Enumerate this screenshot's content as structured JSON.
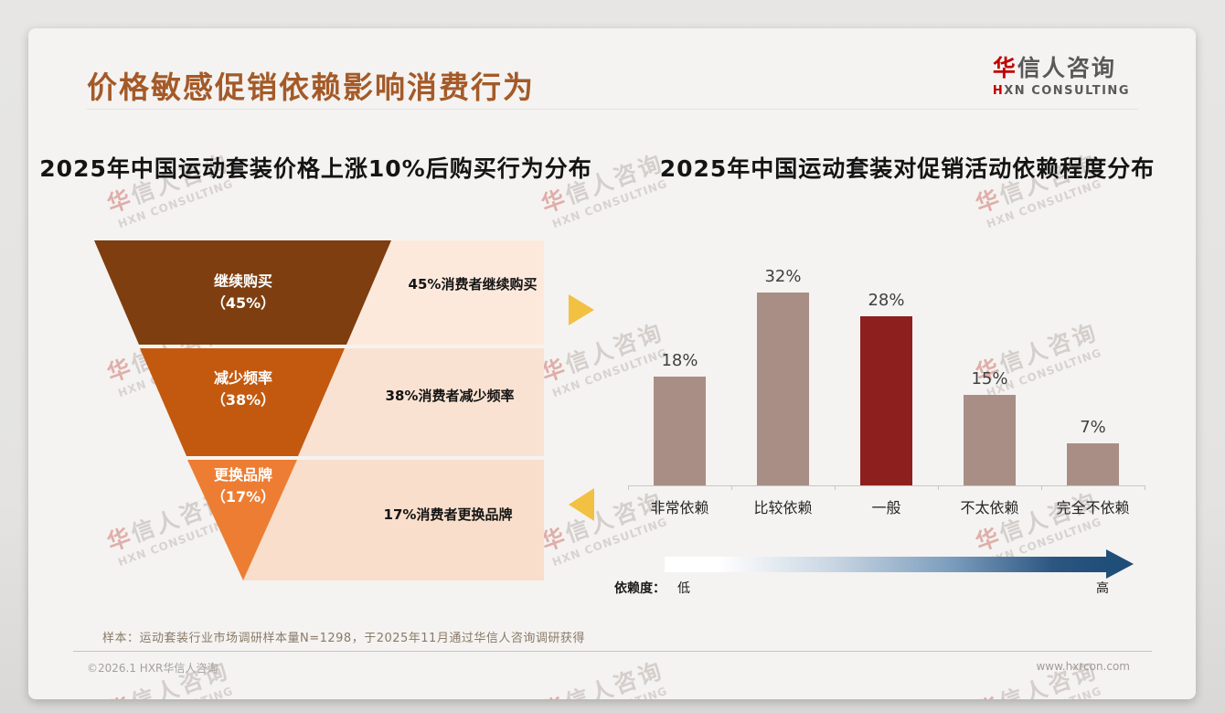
{
  "page": {
    "title": "价格敏感促销依赖影响消费行为",
    "logo": {
      "cn": "华信人咨询",
      "en": "HXN CONSULTING"
    },
    "watermark": {
      "line1": "华信人咨询",
      "line2": "HXN CONSULTING"
    },
    "footnote": "样本：运动套装行业市场调研样本量N=1298，于2025年11月通过华信人咨询调研获得",
    "footer": {
      "left": "©2026.1 HXR华信人咨询",
      "right": "www.hxrcon.com"
    }
  },
  "colors": {
    "title": "#a45a28",
    "logo_red": "#c00000",
    "logo_gray": "#595959",
    "arrow_yellow": "#f2c141",
    "gradient_start": "#ffffff",
    "gradient_end": "#1f4e79"
  },
  "chart_data": [
    {
      "type": "funnel",
      "title": "2025年中国运动套装价格上涨10%后购买行为分布",
      "segments": [
        {
          "label": "继续购买",
          "value": 45,
          "value_label": "（45%）",
          "color": "#7e3e10",
          "band_color": "#fce9dc",
          "annotation": "45%消费者继续购买"
        },
        {
          "label": "减少频率",
          "value": 38,
          "value_label": "（38%）",
          "color": "#c3590f",
          "band_color": "#fae2d2",
          "annotation": "38%消费者减少频率"
        },
        {
          "label": "更换品牌",
          "value": 17,
          "value_label": "（17%）",
          "color": "#ec7d33",
          "band_color": "#f9decb",
          "annotation": "17%消费者更换品牌"
        }
      ]
    },
    {
      "type": "bar",
      "title": "2025年中国运动套装对促销活动依赖程度分布",
      "categories": [
        "非常依赖",
        "比较依赖",
        "一般",
        "不太依赖",
        "完全不依赖"
      ],
      "values": [
        18,
        32,
        28,
        15,
        7
      ],
      "value_labels": [
        "18%",
        "32%",
        "28%",
        "15%",
        "7%"
      ],
      "highlight_index": 2,
      "bar_color": "#a98e86",
      "highlight_color": "#8e1f1f",
      "ylim": [
        0,
        35
      ],
      "grid": false,
      "legend": {
        "name": "依赖度：",
        "low": "低",
        "high": "高"
      }
    }
  ]
}
